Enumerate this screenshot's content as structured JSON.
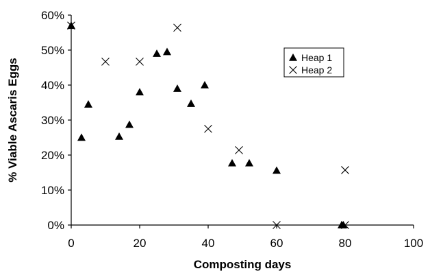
{
  "chart_data": {
    "type": "scatter",
    "title": "",
    "xlabel": "Composting days",
    "ylabel": "% Viable Ascaris Eggs",
    "xlim": [
      0,
      100
    ],
    "ylim": [
      0,
      60
    ],
    "x_ticks": [
      0,
      20,
      40,
      60,
      80,
      100
    ],
    "y_ticks": [
      0,
      10,
      20,
      30,
      40,
      50,
      60
    ],
    "x_tick_labels": [
      "0",
      "20",
      "40",
      "60",
      "80",
      "100"
    ],
    "y_tick_labels": [
      "0%",
      "10%",
      "20%",
      "30%",
      "40%",
      "50%",
      "60%"
    ],
    "grid": false,
    "legend_position": "top-right",
    "series": [
      {
        "name": "Heap 1",
        "marker": "triangle",
        "color": "#000000",
        "points": [
          [
            0,
            57
          ],
          [
            3,
            25
          ],
          [
            5,
            34.5
          ],
          [
            14,
            25.3
          ],
          [
            17,
            28.7
          ],
          [
            20,
            38
          ],
          [
            25,
            49
          ],
          [
            28,
            49.5
          ],
          [
            31,
            39
          ],
          [
            35,
            34.7
          ],
          [
            39,
            40
          ],
          [
            47,
            17.7
          ],
          [
            52,
            17.7
          ],
          [
            60,
            15.6
          ],
          [
            79,
            0
          ],
          [
            79.5,
            0
          ]
        ]
      },
      {
        "name": "Heap 2",
        "marker": "x",
        "color": "#000000",
        "points": [
          [
            0,
            57
          ],
          [
            10,
            46.7
          ],
          [
            20,
            46.7
          ],
          [
            31,
            56.4
          ],
          [
            40,
            27.5
          ],
          [
            49,
            21.4
          ],
          [
            60,
            0
          ],
          [
            80,
            15.7
          ],
          [
            80,
            0
          ]
        ]
      }
    ]
  }
}
